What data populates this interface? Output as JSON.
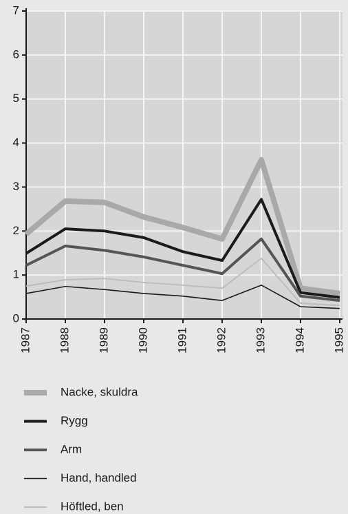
{
  "chart_data": {
    "type": "line",
    "x": [
      1987,
      1988,
      1989,
      1990,
      1991,
      1992,
      1993,
      1994,
      1995
    ],
    "xlim": [
      1987,
      1995
    ],
    "xticks": [
      1987,
      1988,
      1989,
      1990,
      1991,
      1992,
      1993,
      1994,
      1995
    ],
    "ylim": [
      0,
      7
    ],
    "yticks": [
      0,
      1,
      2,
      3,
      4,
      5,
      6,
      7
    ],
    "grid": true,
    "legend": "bottom",
    "series": [
      {
        "name": "Nacke, skuldra",
        "color": "#a9a9a9",
        "line_width": 8,
        "values": [
          1.93,
          2.68,
          2.65,
          2.32,
          2.08,
          1.82,
          3.62,
          0.7,
          0.58
        ]
      },
      {
        "name": "Rygg",
        "color": "#1a1a1a",
        "line_width": 4,
        "values": [
          1.49,
          2.05,
          2.0,
          1.85,
          1.53,
          1.33,
          2.72,
          0.6,
          0.49
        ]
      },
      {
        "name": "Arm",
        "color": "#555555",
        "line_width": 4,
        "values": [
          1.22,
          1.66,
          1.56,
          1.41,
          1.22,
          1.03,
          1.82,
          0.52,
          0.42
        ]
      },
      {
        "name": "Hand, handled",
        "color": "#1a1a1a",
        "line_width": 1.6,
        "values": [
          0.58,
          0.74,
          0.67,
          0.58,
          0.52,
          0.42,
          0.77,
          0.28,
          0.24
        ]
      },
      {
        "name": "Höftled, ben",
        "color": "#bdbdbd",
        "line_width": 2,
        "values": [
          0.75,
          0.89,
          0.92,
          0.83,
          0.77,
          0.7,
          1.38,
          0.36,
          0.31
        ]
      }
    ]
  }
}
